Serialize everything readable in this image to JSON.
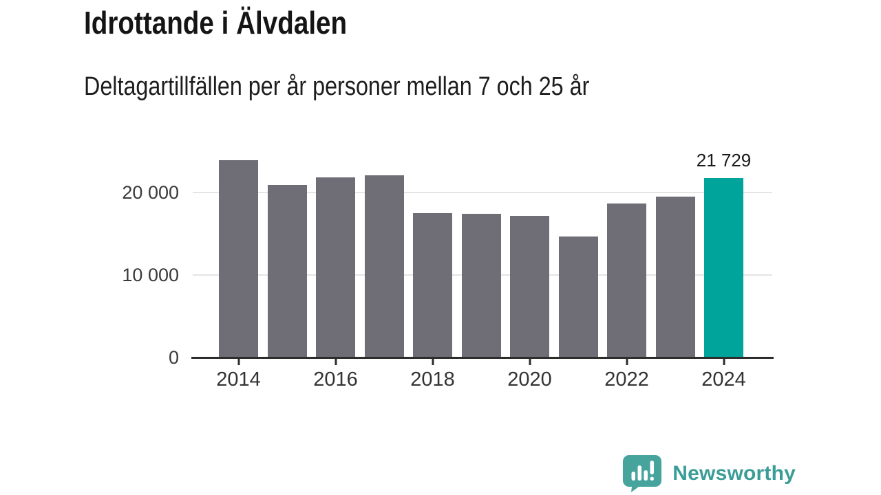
{
  "title": "Idrottande i Älvdalen",
  "subtitle": "Deltagartillfällen per år personer mellan 7 och 25 år",
  "chart_data": {
    "type": "bar",
    "title": "Idrottande i Älvdalen",
    "subtitle": "Deltagartillfällen per år personer mellan 7 och 25 år",
    "xlabel": "",
    "ylabel": "",
    "categories": [
      "2014",
      "2015",
      "2016",
      "2017",
      "2018",
      "2019",
      "2020",
      "2021",
      "2022",
      "2023",
      "2024"
    ],
    "values": [
      23900,
      20900,
      21800,
      22100,
      17500,
      17400,
      17200,
      14700,
      18700,
      19500,
      21729
    ],
    "highlight_index": 10,
    "bar_label": {
      "index": 10,
      "text": "21 729"
    },
    "x_tick_indices": [
      0,
      2,
      4,
      6,
      8,
      10
    ],
    "x_tick_labels": [
      "2014",
      "2016",
      "2018",
      "2020",
      "2022",
      "2024"
    ],
    "y_ticks": [
      {
        "value": 0,
        "label": "0"
      },
      {
        "value": 10000,
        "label": "10 000"
      },
      {
        "value": 20000,
        "label": "20 000"
      }
    ],
    "ylim": [
      0,
      25000
    ],
    "grid": "horizontal",
    "legend": "none",
    "colors": {
      "bar": "#6f6e76",
      "highlight": "#00a49a",
      "gridline": "#e4e4e4",
      "axis": "#2d2d2d"
    }
  },
  "footer": {
    "brand": "Newsworthy",
    "logo_icon": "newsworthy-speech-bubble-chart-icon",
    "brand_color": "#3b9d97",
    "logo_bubble_color": "#46a49d"
  }
}
